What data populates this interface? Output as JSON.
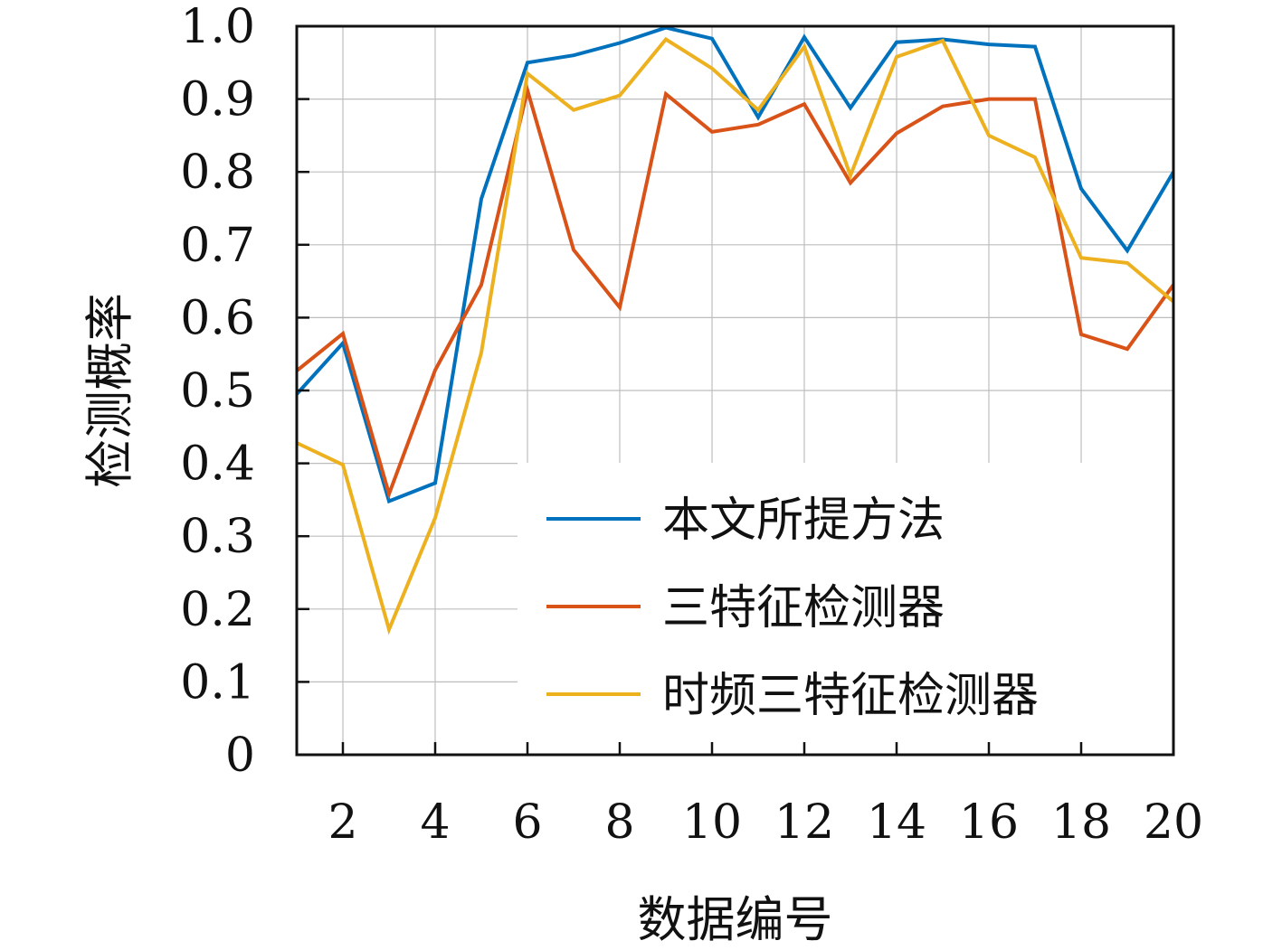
{
  "chart_data": {
    "type": "line",
    "x": [
      1,
      2,
      3,
      4,
      5,
      6,
      7,
      8,
      9,
      10,
      11,
      12,
      13,
      14,
      15,
      16,
      17,
      18,
      19,
      20
    ],
    "series": [
      {
        "name": "本文所提方法",
        "color": "#0072BD",
        "values": [
          0.495,
          0.565,
          0.348,
          0.373,
          0.763,
          0.95,
          0.96,
          0.977,
          0.998,
          0.983,
          0.875,
          0.985,
          0.888,
          0.978,
          0.982,
          0.975,
          0.972,
          0.777,
          0.692,
          0.8
        ]
      },
      {
        "name": "三特征检测器",
        "color": "#D95319",
        "values": [
          0.527,
          0.578,
          0.358,
          0.528,
          0.645,
          0.912,
          0.693,
          0.614,
          0.907,
          0.855,
          0.865,
          0.893,
          0.785,
          0.853,
          0.89,
          0.9,
          0.9,
          0.577,
          0.557,
          0.645
        ]
      },
      {
        "name": "时频三特征检测器",
        "color": "#EDB120",
        "values": [
          0.428,
          0.398,
          0.172,
          0.325,
          0.552,
          0.935,
          0.885,
          0.905,
          0.982,
          0.942,
          0.885,
          0.972,
          0.795,
          0.958,
          0.98,
          0.85,
          0.82,
          0.682,
          0.675,
          0.622
        ]
      }
    ],
    "xlabel": "数据编号",
    "ylabel": "检测概率",
    "xlim": [
      1,
      20
    ],
    "ylim": [
      0,
      1.0
    ],
    "xticks": [
      "2",
      "4",
      "6",
      "8",
      "10",
      "12",
      "14",
      "16",
      "18",
      "20"
    ],
    "yticks": [
      "0",
      "0.1",
      "0.2",
      "0.3",
      "0.4",
      "0.5",
      "0.6",
      "0.7",
      "0.8",
      "0.9",
      "1.0"
    ],
    "grid": true,
    "legend_position": "bottom-right"
  }
}
